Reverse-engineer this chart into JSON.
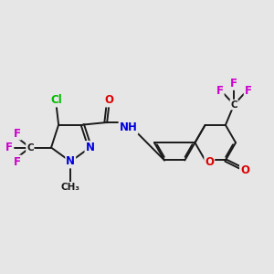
{
  "bg_color": "#e6e6e6",
  "bond_color": "#1a1a1a",
  "bond_width": 1.4,
  "atom_colors": {
    "C": "#1a1a1a",
    "N": "#0000e0",
    "O": "#dd0000",
    "F": "#cc00cc",
    "Cl": "#00bb00",
    "H": "#1a1a1a"
  },
  "font_size": 8.5
}
